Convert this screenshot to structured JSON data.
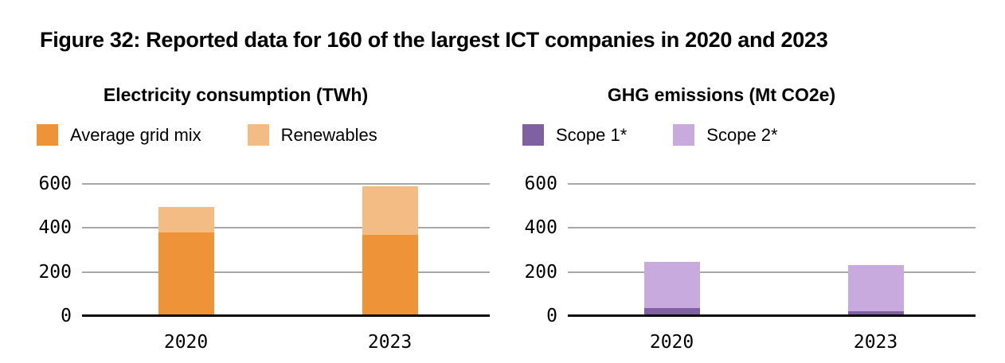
{
  "figure_title": "Figure 32: Reported data for 160 of the largest ICT companies in 2020 and 2023",
  "colors": {
    "background": "#FFFFFF",
    "text": "#000000",
    "gridline": "#A8A8A8",
    "axis": "#0A0A0A",
    "orange": "#EE9338",
    "light_orange": "#F4BC85",
    "dark_purple": "#7F61A2",
    "light_purple": "#C9AADF"
  },
  "chart_data": [
    {
      "type": "bar",
      "stacked": true,
      "title": "Electricity consumption (TWh)",
      "categories": [
        "2020",
        "2023"
      ],
      "series": [
        {
          "name": "Average grid mix",
          "color": "#EE9338",
          "values": [
            380,
            370
          ]
        },
        {
          "name": "Renewables",
          "color": "#F4BC85",
          "values": [
            115,
            220
          ]
        }
      ],
      "totals": [
        495,
        590
      ],
      "ylim": [
        0,
        600
      ],
      "yticks": [
        0,
        200,
        400,
        600
      ],
      "grid": true,
      "legend_position": "top-left"
    },
    {
      "type": "bar",
      "stacked": true,
      "title": "GHG emissions (Mt CO2e)",
      "categories": [
        "2020",
        "2023"
      ],
      "series": [
        {
          "name": "Scope 1*",
          "color": "#7F61A2",
          "values": [
            35,
            20
          ]
        },
        {
          "name": "Scope 2*",
          "color": "#C9AADF",
          "values": [
            210,
            210
          ]
        }
      ],
      "totals": [
        245,
        230
      ],
      "ylim": [
        0,
        600
      ],
      "yticks": [
        0,
        200,
        400,
        600
      ],
      "grid": true,
      "legend_position": "top-left"
    }
  ]
}
